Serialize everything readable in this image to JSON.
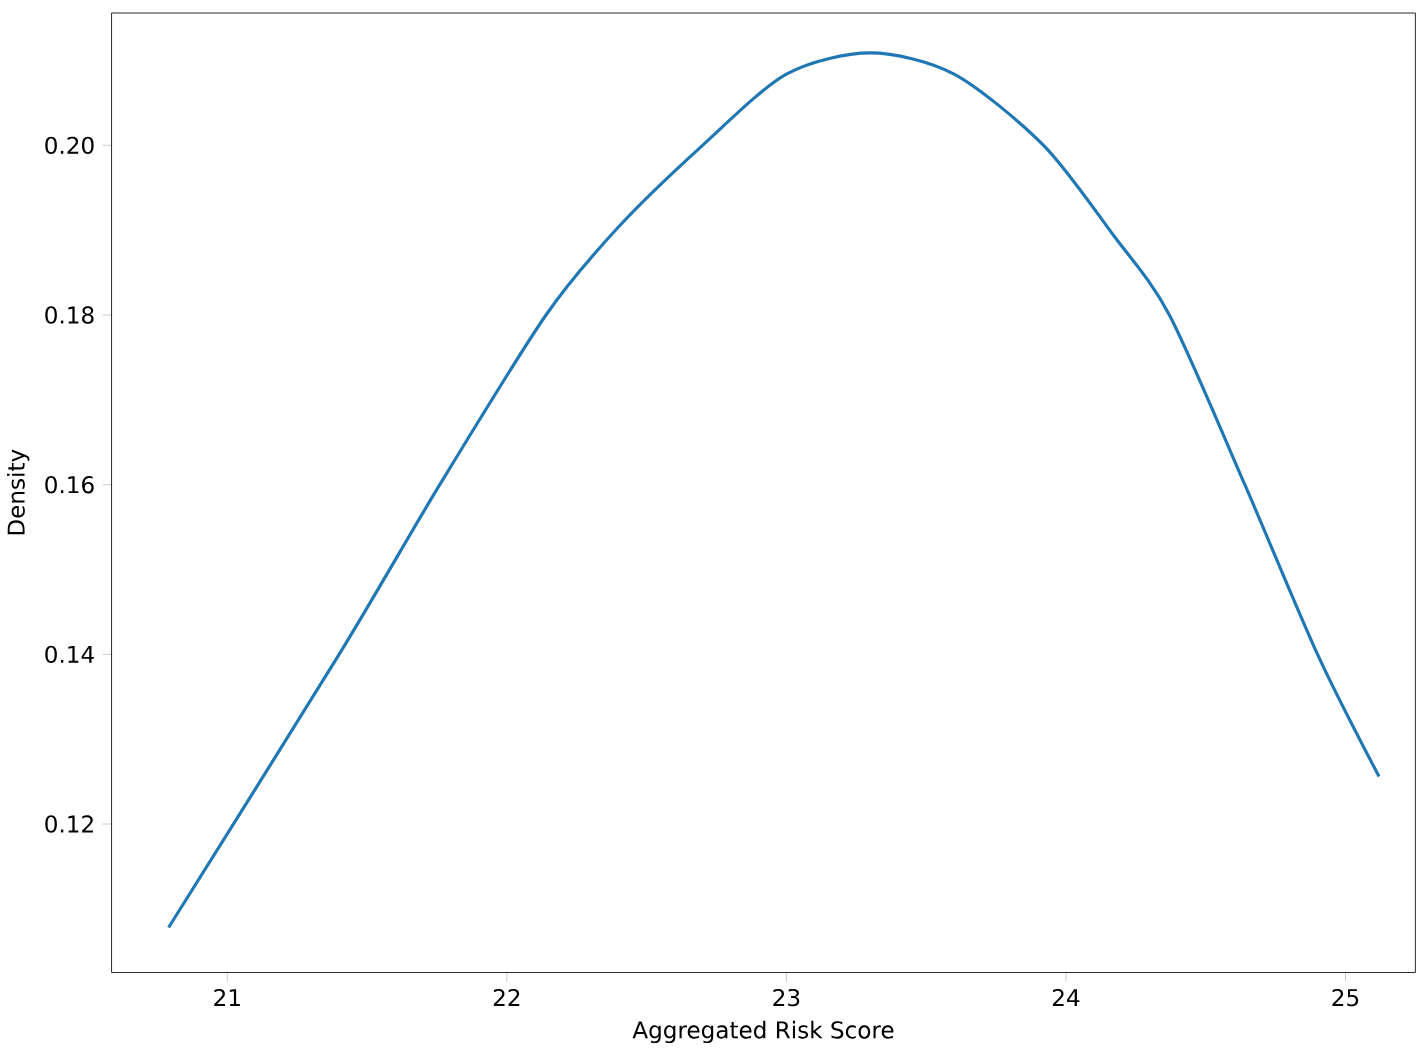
{
  "chart_data": {
    "type": "line",
    "xlabel": "Aggregated Risk Score",
    "ylabel": "Density",
    "x": [
      20.79,
      21.4,
      21.76,
      22.14,
      22.4,
      22.7,
      23.0,
      23.3,
      23.6,
      23.92,
      24.17,
      24.37,
      24.64,
      24.9,
      25.12
    ],
    "series": [
      {
        "color": "#1f77b4",
        "values": [
          0.1078,
          0.14,
          0.16,
          0.18,
          0.1904,
          0.2,
          0.2084,
          0.2109,
          0.2084,
          0.2,
          0.1894,
          0.18,
          0.16,
          0.14,
          0.1256
        ]
      }
    ],
    "xlim": [
      20.586,
      25.25
    ],
    "ylim": [
      0.1025,
      0.2156
    ],
    "xticks": [
      21,
      22,
      23,
      24,
      25
    ],
    "yticks": [
      {
        "value": 0.12,
        "label": "0.12"
      },
      {
        "value": 0.14,
        "label": "0.14"
      },
      {
        "value": 0.16,
        "label": "0.16"
      },
      {
        "value": 0.18,
        "label": "0.18"
      },
      {
        "value": 0.2,
        "label": "0.20"
      }
    ],
    "grid": false
  }
}
